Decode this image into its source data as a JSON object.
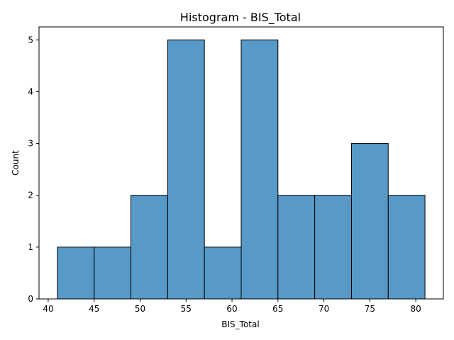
{
  "chart_data": {
    "type": "bar",
    "title": "Histogram - BIS_Total",
    "xlabel": "BIS_Total",
    "ylabel": "Count",
    "bins": [
      {
        "start": 41,
        "end": 45,
        "count": 1
      },
      {
        "start": 45,
        "end": 49,
        "count": 1
      },
      {
        "start": 49,
        "end": 53,
        "count": 2
      },
      {
        "start": 53,
        "end": 57,
        "count": 5
      },
      {
        "start": 57,
        "end": 61,
        "count": 1
      },
      {
        "start": 61,
        "end": 65,
        "count": 5
      },
      {
        "start": 65,
        "end": 69,
        "count": 2
      },
      {
        "start": 69,
        "end": 73,
        "count": 2
      },
      {
        "start": 73,
        "end": 77,
        "count": 3
      },
      {
        "start": 77,
        "end": 81,
        "count": 2
      }
    ],
    "xticks": [
      40,
      45,
      50,
      55,
      60,
      65,
      70,
      75,
      80
    ],
    "yticks": [
      0,
      1,
      2,
      3,
      4,
      5
    ],
    "xlim": [
      39,
      83
    ],
    "ylim": [
      0,
      5.25
    ],
    "bar_color": "#5799c7",
    "grid": false
  }
}
